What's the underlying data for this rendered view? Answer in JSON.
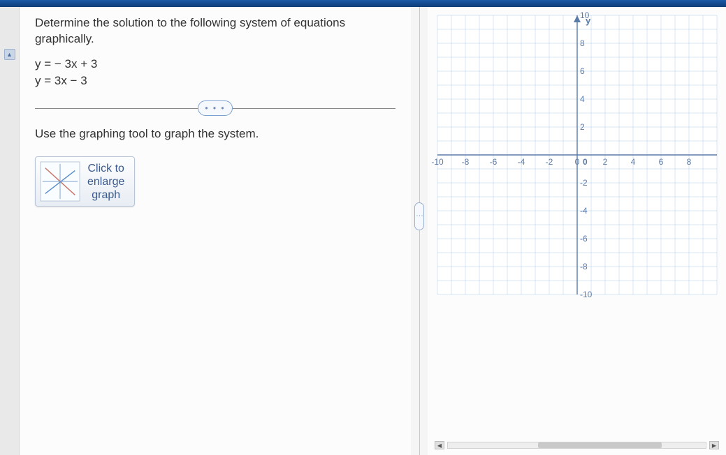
{
  "question": {
    "prompt": "Determine the solution to the following system of equations graphically.",
    "equations": [
      "y = − 3x + 3",
      "y = 3x − 3"
    ],
    "instruction": "Use the graphing tool to graph the system.",
    "enlarge_label": "Click to\nenlarge\ngraph"
  },
  "chart": {
    "type": "cartesian-grid",
    "xlim": [
      -10,
      10
    ],
    "ylim": [
      -10,
      10
    ],
    "tick_step": 2,
    "x_ticks": [
      -10,
      -8,
      -6,
      -4,
      -2,
      0,
      2,
      4,
      6,
      8
    ],
    "y_ticks": [
      10,
      8,
      6,
      4,
      2,
      -2,
      -4,
      -6,
      -8,
      -10
    ],
    "y_axis_label": "y",
    "grid_color": "#8fb8e6",
    "axis_color": "#5a7aa8",
    "tick_label_color": "#5a7aa8",
    "tick_fontsize": 12,
    "background_color": "#ffffff",
    "label_fontsize": 13
  },
  "pill_dots": "• • •",
  "handle_dots": "⋮",
  "scroll": {
    "left_arrow": "◀",
    "right_arrow": "▶"
  },
  "gutter": {
    "collapse_glyph": "▴"
  }
}
